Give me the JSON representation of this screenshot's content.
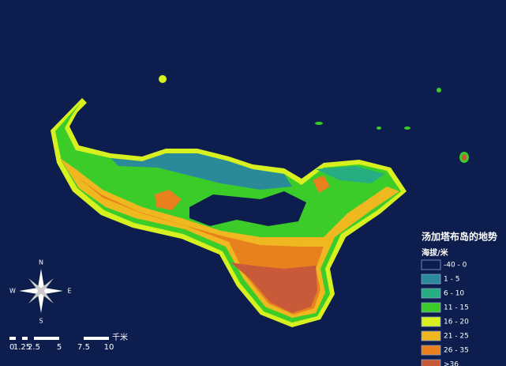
{
  "title": "汤加塔布岛的地势",
  "legend": {
    "title": "海拔/米",
    "items": [
      {
        "label": "-40 - 0",
        "color": "#0d1d4e"
      },
      {
        "label": "1 - 5",
        "color": "#2a8a9a"
      },
      {
        "label": "6 - 10",
        "color": "#26ae82"
      },
      {
        "label": "11 - 15",
        "color": "#3ccc2a"
      },
      {
        "label": "16 - 20",
        "color": "#d8f020"
      },
      {
        "label": "21 - 25",
        "color": "#f0b820"
      },
      {
        "label": "26 - 35",
        "color": "#e8801e"
      },
      {
        "label": ">36",
        "color": "#c85a3a"
      }
    ]
  },
  "compass": {
    "n": "N",
    "e": "E",
    "s": "S",
    "w": "W"
  },
  "scale_bar": {
    "labels": [
      "0",
      "1.25",
      "2.5",
      "5",
      "7.5",
      "10"
    ],
    "unit": "千米"
  }
}
